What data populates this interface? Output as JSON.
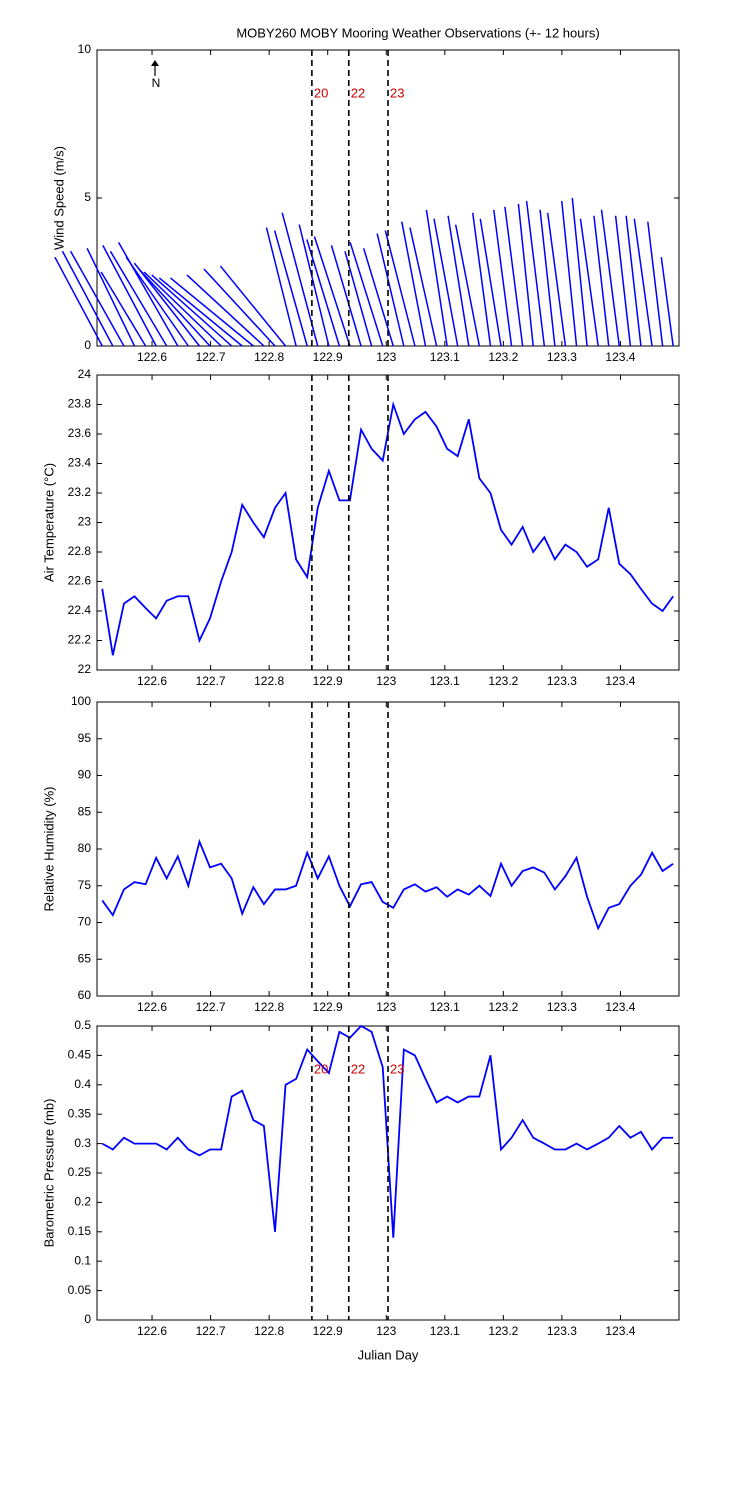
{
  "title": "MOBY260 MOBY Mooring Weather Observations (+- 12 hours)",
  "markers": {
    "x": [
      122.873,
      122.936,
      123.003
    ],
    "labels": [
      "20",
      "22",
      "23"
    ],
    "color": "#cc0000"
  },
  "chart_data": [
    {
      "type": "stick",
      "ylabel": "Wind Speed (m/s)",
      "north_label": "N",
      "color": "#0000ff",
      "x": [
        122.515,
        122.533,
        122.552,
        122.57,
        122.589,
        122.607,
        122.625,
        122.644,
        122.662,
        122.681,
        122.699,
        122.718,
        122.736,
        122.754,
        122.773,
        122.791,
        122.81,
        122.828,
        122.846,
        122.865,
        122.883,
        122.902,
        122.92,
        122.938,
        122.957,
        122.975,
        122.994,
        123.012,
        123.03,
        123.049,
        123.067,
        123.086,
        123.104,
        123.122,
        123.141,
        123.159,
        123.178,
        123.196,
        123.214,
        123.233,
        123.251,
        123.27,
        123.288,
        123.306,
        123.325,
        123.343,
        123.362,
        123.38,
        123.398,
        123.417,
        123.435,
        123.454,
        123.472,
        123.49
      ],
      "u": [
        -1.6,
        -1.7,
        -1.8,
        -1.6,
        -1.5,
        -1.8,
        -1.9,
        -2.0,
        -2.1,
        -2.2,
        -2.4,
        -2.6,
        -2.7,
        -2.8,
        -2.8,
        -2.6,
        -2.4,
        -2.2,
        -1.0,
        -1.1,
        -1.2,
        -1.0,
        -1.1,
        -1.2,
        -1.0,
        -0.9,
        -1.1,
        -1.0,
        -0.9,
        -1.0,
        -0.8,
        -0.9,
        -0.7,
        -0.8,
        -0.7,
        -0.8,
        -0.6,
        -0.7,
        -0.6,
        -0.6,
        -0.5,
        -0.6,
        -0.5,
        -0.6,
        -0.5,
        -0.5,
        -0.6,
        -0.5,
        -0.6,
        -0.5,
        -0.5,
        -0.6,
        -0.5,
        -0.4
      ],
      "v": [
        3.0,
        3.2,
        3.2,
        3.3,
        2.5,
        3.4,
        3.2,
        3.5,
        3.0,
        2.8,
        2.6,
        2.5,
        2.4,
        2.3,
        2.3,
        2.4,
        2.6,
        2.7,
        4.0,
        3.9,
        4.5,
        4.1,
        3.6,
        3.7,
        3.4,
        3.2,
        3.5,
        3.3,
        3.8,
        3.9,
        4.2,
        4.0,
        4.6,
        4.3,
        4.4,
        4.1,
        4.5,
        4.3,
        4.6,
        4.7,
        4.8,
        4.9,
        4.6,
        4.5,
        4.9,
        5.0,
        4.3,
        4.4,
        4.6,
        4.4,
        4.4,
        4.3,
        4.2,
        3.0
      ],
      "xlim": [
        122.506,
        123.5
      ],
      "xticks": [
        122.6,
        122.7,
        122.8,
        122.9,
        123,
        123.1,
        123.2,
        123.3,
        123.4
      ],
      "ylim": [
        0,
        10
      ],
      "yticks": [
        0,
        5,
        10
      ]
    },
    {
      "type": "line",
      "ylabel": "Air Temperature (°C)",
      "color": "#0000ff",
      "x": [
        122.515,
        122.533,
        122.552,
        122.57,
        122.589,
        122.607,
        122.625,
        122.644,
        122.662,
        122.681,
        122.699,
        122.718,
        122.736,
        122.754,
        122.773,
        122.791,
        122.81,
        122.828,
        122.846,
        122.865,
        122.883,
        122.902,
        122.92,
        122.938,
        122.957,
        122.975,
        122.994,
        123.012,
        123.03,
        123.049,
        123.067,
        123.086,
        123.104,
        123.122,
        123.141,
        123.159,
        123.178,
        123.196,
        123.214,
        123.233,
        123.251,
        123.27,
        123.288,
        123.306,
        123.325,
        123.343,
        123.362,
        123.38,
        123.398,
        123.417,
        123.435,
        123.454,
        123.472,
        123.49
      ],
      "values": [
        22.55,
        22.1,
        22.45,
        22.5,
        22.42,
        22.35,
        22.47,
        22.5,
        22.5,
        22.2,
        22.35,
        22.6,
        22.8,
        23.12,
        23.0,
        22.9,
        23.1,
        23.2,
        22.75,
        22.63,
        23.1,
        23.35,
        23.15,
        23.15,
        23.63,
        23.5,
        23.42,
        23.8,
        23.6,
        23.7,
        23.75,
        23.65,
        23.5,
        23.45,
        23.7,
        23.3,
        23.2,
        22.95,
        22.85,
        22.97,
        22.8,
        22.9,
        22.75,
        22.85,
        22.8,
        22.7,
        22.75,
        23.1,
        22.72,
        22.65,
        22.55,
        22.45,
        22.4,
        22.5
      ],
      "xlim": [
        122.506,
        123.5
      ],
      "xticks": [
        122.6,
        122.7,
        122.8,
        122.9,
        123,
        123.1,
        123.2,
        123.3,
        123.4
      ],
      "ylim": [
        22,
        24
      ],
      "yticks": [
        22,
        22.2,
        22.4,
        22.6,
        22.8,
        23,
        23.2,
        23.4,
        23.6,
        23.8,
        24
      ]
    },
    {
      "type": "line",
      "ylabel": "Relative Humidity (%)",
      "color": "#0000ff",
      "x": [
        122.515,
        122.533,
        122.552,
        122.57,
        122.589,
        122.607,
        122.625,
        122.644,
        122.662,
        122.681,
        122.699,
        122.718,
        122.736,
        122.754,
        122.773,
        122.791,
        122.81,
        122.828,
        122.846,
        122.865,
        122.883,
        122.902,
        122.92,
        122.938,
        122.957,
        122.975,
        122.994,
        123.012,
        123.03,
        123.049,
        123.067,
        123.086,
        123.104,
        123.122,
        123.141,
        123.159,
        123.178,
        123.196,
        123.214,
        123.233,
        123.251,
        123.27,
        123.288,
        123.306,
        123.325,
        123.343,
        123.362,
        123.38,
        123.398,
        123.417,
        123.435,
        123.454,
        123.472,
        123.49
      ],
      "values": [
        73,
        71,
        74.5,
        75.5,
        75.2,
        78.8,
        76,
        79,
        75,
        81,
        77.5,
        78,
        76,
        71.2,
        74.8,
        72.5,
        74.5,
        74.5,
        75,
        79.5,
        76,
        79,
        75,
        72.2,
        75.2,
        75.5,
        72.8,
        72,
        74.5,
        75.2,
        74.2,
        74.8,
        73.5,
        74.5,
        73.8,
        75,
        73.6,
        78,
        75,
        77,
        77.5,
        76.8,
        74.5,
        76.3,
        78.8,
        73.5,
        69.2,
        72,
        72.5,
        75,
        76.5,
        79.5,
        77,
        78
      ],
      "xlim": [
        122.506,
        123.5
      ],
      "xticks": [
        122.6,
        122.7,
        122.8,
        122.9,
        123,
        123.1,
        123.2,
        123.3,
        123.4
      ],
      "ylim": [
        60,
        100
      ],
      "yticks": [
        60,
        65,
        70,
        75,
        80,
        85,
        90,
        95,
        100
      ]
    },
    {
      "type": "line",
      "ylabel": "Barometric Pressure (mb)",
      "xlabel": "Julian Day",
      "color": "#0000ff",
      "show_marker_labels": true,
      "x": [
        122.515,
        122.533,
        122.552,
        122.57,
        122.589,
        122.607,
        122.625,
        122.644,
        122.662,
        122.681,
        122.699,
        122.718,
        122.736,
        122.754,
        122.773,
        122.791,
        122.81,
        122.828,
        122.846,
        122.865,
        122.883,
        122.902,
        122.92,
        122.938,
        122.957,
        122.975,
        122.994,
        123.012,
        123.03,
        123.049,
        123.067,
        123.086,
        123.104,
        123.122,
        123.141,
        123.159,
        123.178,
        123.196,
        123.214,
        123.233,
        123.251,
        123.27,
        123.288,
        123.306,
        123.325,
        123.343,
        123.362,
        123.38,
        123.398,
        123.417,
        123.435,
        123.454,
        123.472,
        123.49
      ],
      "values": [
        0.3,
        0.29,
        0.31,
        0.3,
        0.3,
        0.3,
        0.29,
        0.31,
        0.29,
        0.28,
        0.29,
        0.29,
        0.38,
        0.39,
        0.34,
        0.33,
        0.15,
        0.4,
        0.41,
        0.46,
        0.44,
        0.42,
        0.49,
        0.48,
        0.5,
        0.49,
        0.43,
        0.14,
        0.46,
        0.45,
        0.41,
        0.37,
        0.38,
        0.37,
        0.38,
        0.38,
        0.45,
        0.29,
        0.31,
        0.34,
        0.31,
        0.3,
        0.29,
        0.29,
        0.3,
        0.29,
        0.3,
        0.31,
        0.33,
        0.31,
        0.32,
        0.29,
        0.31,
        0.31
      ],
      "xlim": [
        122.506,
        123.5
      ],
      "xticks": [
        122.6,
        122.7,
        122.8,
        122.9,
        123,
        123.1,
        123.2,
        123.3,
        123.4
      ],
      "ylim": [
        0,
        0.5
      ],
      "yticks": [
        0,
        0.05,
        0.1,
        0.15,
        0.2,
        0.25,
        0.3,
        0.35,
        0.4,
        0.45,
        0.5
      ]
    }
  ]
}
